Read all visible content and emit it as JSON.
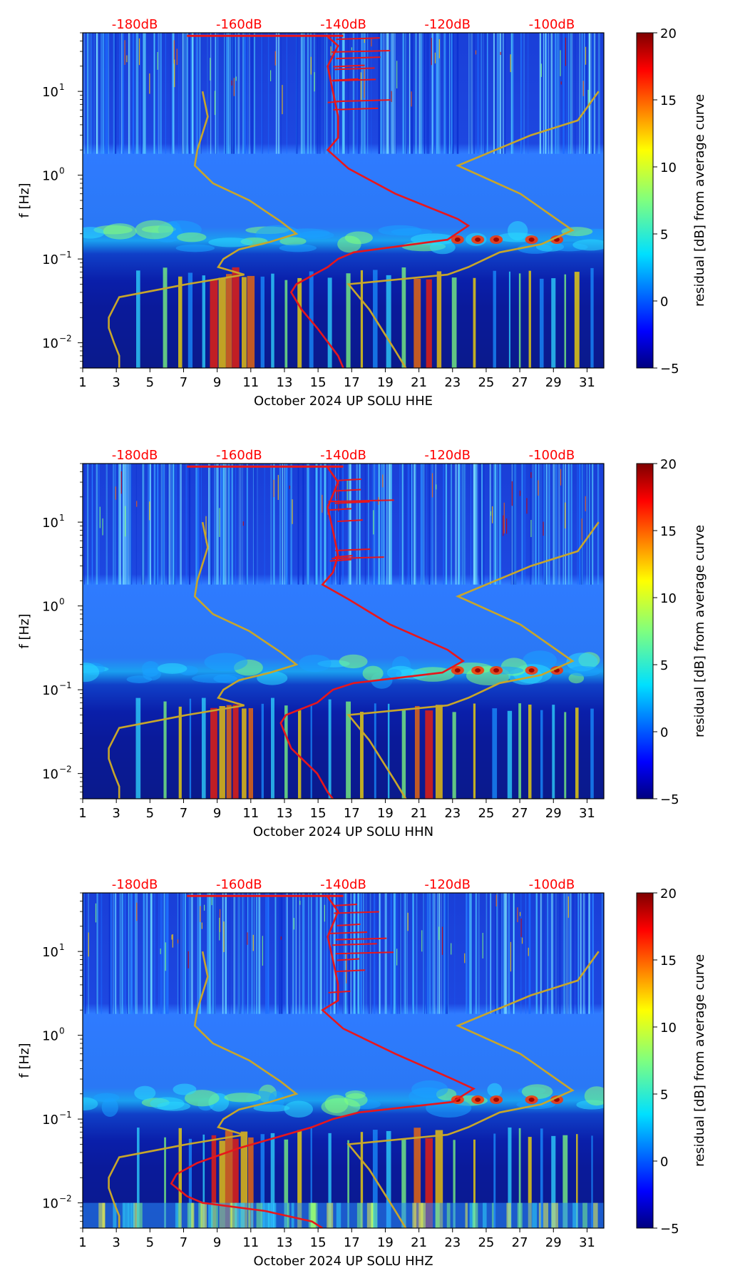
{
  "colors": {
    "psd_curve": "#e8161b",
    "noise_model": "#c8a62a",
    "db_axis_text": "#ff0000",
    "colormap": [
      "#00007f",
      "#0000ff",
      "#007fff",
      "#00ffff",
      "#7fff7f",
      "#ffff00",
      "#ff7f00",
      "#ff0000",
      "#7f0000"
    ]
  },
  "chart_data": [
    {
      "type": "heatmap",
      "component": "HHE",
      "xlabel": "October 2024 UP SOLU  HHE",
      "ylabel": "f [Hz]",
      "xlim": [
        1,
        32
      ],
      "ylim": [
        0.005,
        50
      ],
      "yscale": "log",
      "x_ticks": [
        "1",
        "3",
        "5",
        "7",
        "9",
        "11",
        "13",
        "15",
        "17",
        "19",
        "21",
        "23",
        "25",
        "27",
        "29",
        "31"
      ],
      "y_ticks": [
        {
          "base": "10",
          "exp": "−2",
          "value": 0.01
        },
        {
          "base": "10",
          "exp": "−1",
          "value": 0.1
        },
        {
          "base": "10",
          "exp": "0",
          "value": 1
        },
        {
          "base": "10",
          "exp": "1",
          "value": 10
        }
      ],
      "db_axis": {
        "labels": [
          "-180dB",
          "-160dB",
          "-140dB",
          "-120dB",
          "-100dB"
        ],
        "values": [
          -180,
          -160,
          -140,
          -120,
          -100
        ],
        "range": [
          -190,
          -90
        ]
      },
      "colorbar": {
        "label": "residual [dB] from average curve",
        "ticks": [
          "−5",
          "0",
          "5",
          "10",
          "15",
          "20"
        ],
        "range": [
          -5,
          20
        ]
      },
      "psd_curve_db": [
        [
          -143,
          45
        ],
        [
          -141,
          35
        ],
        [
          -143,
          20
        ],
        [
          -142,
          10
        ],
        [
          -141,
          5
        ],
        [
          -141,
          2.8
        ],
        [
          -143,
          2
        ],
        [
          -139,
          1.2
        ],
        [
          -130,
          0.6
        ],
        [
          -118,
          0.3
        ],
        [
          -116,
          0.25
        ],
        [
          -120,
          0.17
        ],
        [
          -138,
          0.12
        ],
        [
          -141,
          0.1
        ],
        [
          -143,
          0.08
        ],
        [
          -149,
          0.05
        ],
        [
          -150,
          0.04
        ],
        [
          -148,
          0.025
        ],
        [
          -145,
          0.015
        ],
        [
          -141,
          0.007
        ],
        [
          -140,
          0.005
        ]
      ],
      "noise_model_low_db": [
        [
          -167,
          10
        ],
        [
          -166,
          5
        ],
        [
          -168,
          2
        ],
        [
          -168.5,
          1.3
        ],
        [
          -165,
          0.8
        ],
        [
          -158,
          0.5
        ],
        [
          -152,
          0.28
        ],
        [
          -149,
          0.2
        ],
        [
          -154,
          0.16
        ],
        [
          -160,
          0.13
        ],
        [
          -163,
          0.1
        ],
        [
          -164,
          0.08
        ],
        [
          -159,
          0.065
        ],
        [
          -170,
          0.05
        ],
        [
          -183,
          0.035
        ],
        [
          -185,
          0.02
        ],
        [
          -185,
          0.015
        ],
        [
          -184,
          0.01
        ],
        [
          -183,
          0.007
        ],
        [
          -183,
          0.005
        ]
      ],
      "noise_model_high_db": [
        [
          -91,
          10
        ],
        [
          -95,
          4.5
        ],
        [
          -104,
          3
        ],
        [
          -118,
          1.3
        ],
        [
          -106,
          0.6
        ],
        [
          -96,
          0.22
        ],
        [
          -102,
          0.15
        ],
        [
          -110,
          0.12
        ],
        [
          -116,
          0.08
        ],
        [
          -120,
          0.065
        ],
        [
          -139,
          0.05
        ],
        [
          -135,
          0.025
        ],
        [
          -130,
          0.008
        ],
        [
          -128,
          0.005
        ]
      ]
    },
    {
      "type": "heatmap",
      "component": "HHN",
      "xlabel": "October 2024 UP SOLU  HHN",
      "ylabel": "f [Hz]",
      "xlim": [
        1,
        32
      ],
      "ylim": [
        0.005,
        50
      ],
      "yscale": "log",
      "x_ticks": [
        "1",
        "3",
        "5",
        "7",
        "9",
        "11",
        "13",
        "15",
        "17",
        "19",
        "21",
        "23",
        "25",
        "27",
        "29",
        "31"
      ],
      "y_ticks": [
        {
          "base": "10",
          "exp": "−2",
          "value": 0.01
        },
        {
          "base": "10",
          "exp": "−1",
          "value": 0.1
        },
        {
          "base": "10",
          "exp": "0",
          "value": 1
        },
        {
          "base": "10",
          "exp": "1",
          "value": 10
        }
      ],
      "db_axis": {
        "labels": [
          "-180dB",
          "-160dB",
          "-140dB",
          "-120dB",
          "-100dB"
        ],
        "values": [
          -180,
          -160,
          -140,
          -120,
          -100
        ],
        "range": [
          -190,
          -90
        ]
      },
      "colorbar": {
        "label": "residual [dB] from average curve",
        "ticks": [
          "−5",
          "0",
          "5",
          "10",
          "15",
          "20"
        ],
        "range": [
          -5,
          20
        ]
      },
      "psd_curve_db": [
        [
          -143,
          45
        ],
        [
          -141,
          30
        ],
        [
          -143,
          15
        ],
        [
          -142,
          8
        ],
        [
          -141,
          4
        ],
        [
          -142,
          2.5
        ],
        [
          -144,
          1.8
        ],
        [
          -139,
          1.2
        ],
        [
          -131,
          0.6
        ],
        [
          -120,
          0.3
        ],
        [
          -117,
          0.22
        ],
        [
          -121,
          0.16
        ],
        [
          -138,
          0.12
        ],
        [
          -142,
          0.1
        ],
        [
          -145,
          0.07
        ],
        [
          -151,
          0.05
        ],
        [
          -152,
          0.04
        ],
        [
          -150,
          0.02
        ],
        [
          -145,
          0.01
        ],
        [
          -143,
          0.006
        ],
        [
          -142,
          0.005
        ]
      ],
      "noise_model_low_db": [
        [
          -167,
          10
        ],
        [
          -166,
          5
        ],
        [
          -168,
          2
        ],
        [
          -168.5,
          1.3
        ],
        [
          -165,
          0.8
        ],
        [
          -158,
          0.5
        ],
        [
          -152,
          0.28
        ],
        [
          -149,
          0.2
        ],
        [
          -154,
          0.16
        ],
        [
          -160,
          0.13
        ],
        [
          -163,
          0.1
        ],
        [
          -164,
          0.08
        ],
        [
          -159,
          0.065
        ],
        [
          -170,
          0.05
        ],
        [
          -183,
          0.035
        ],
        [
          -185,
          0.02
        ],
        [
          -185,
          0.015
        ],
        [
          -184,
          0.01
        ],
        [
          -183,
          0.007
        ],
        [
          -183,
          0.005
        ]
      ],
      "noise_model_high_db": [
        [
          -91,
          10
        ],
        [
          -95,
          4.5
        ],
        [
          -104,
          3
        ],
        [
          -118,
          1.3
        ],
        [
          -106,
          0.6
        ],
        [
          -96,
          0.22
        ],
        [
          -102,
          0.15
        ],
        [
          -110,
          0.12
        ],
        [
          -116,
          0.08
        ],
        [
          -120,
          0.065
        ],
        [
          -139,
          0.05
        ],
        [
          -135,
          0.025
        ],
        [
          -130,
          0.008
        ],
        [
          -128,
          0.005
        ]
      ]
    },
    {
      "type": "heatmap",
      "component": "HHZ",
      "xlabel": "October 2024 UP SOLU  HHZ",
      "ylabel": "f [Hz]",
      "xlim": [
        1,
        32
      ],
      "ylim": [
        0.005,
        50
      ],
      "yscale": "log",
      "x_ticks": [
        "1",
        "3",
        "5",
        "7",
        "9",
        "11",
        "13",
        "15",
        "17",
        "19",
        "21",
        "23",
        "25",
        "27",
        "29",
        "31"
      ],
      "y_ticks": [
        {
          "base": "10",
          "exp": "−2",
          "value": 0.01
        },
        {
          "base": "10",
          "exp": "−1",
          "value": 0.1
        },
        {
          "base": "10",
          "exp": "0",
          "value": 1
        },
        {
          "base": "10",
          "exp": "1",
          "value": 10
        }
      ],
      "db_axis": {
        "labels": [
          "-180dB",
          "-160dB",
          "-140dB",
          "-120dB",
          "-100dB"
        ],
        "values": [
          -180,
          -160,
          -140,
          -120,
          -100
        ],
        "range": [
          -190,
          -90
        ]
      },
      "colorbar": {
        "label": "residual [dB] from average curve",
        "ticks": [
          "−5",
          "0",
          "5",
          "10",
          "15",
          "20"
        ],
        "range": [
          -5,
          20
        ]
      },
      "psd_curve_db": [
        [
          -143,
          45
        ],
        [
          -141,
          30
        ],
        [
          -143,
          15
        ],
        [
          -142,
          8
        ],
        [
          -141,
          4
        ],
        [
          -141,
          2.6
        ],
        [
          -144,
          2
        ],
        [
          -140,
          1.2
        ],
        [
          -130,
          0.6
        ],
        [
          -119,
          0.3
        ],
        [
          -115,
          0.23
        ],
        [
          -119,
          0.16
        ],
        [
          -137,
          0.12
        ],
        [
          -142,
          0.1
        ],
        [
          -146,
          0.08
        ],
        [
          -153,
          0.06
        ],
        [
          -160,
          0.045
        ],
        [
          -168,
          0.03
        ],
        [
          -172,
          0.022
        ],
        [
          -173,
          0.017
        ],
        [
          -170,
          0.012
        ],
        [
          -167,
          0.01
        ],
        [
          -155,
          0.008
        ],
        [
          -146,
          0.006
        ],
        [
          -144,
          0.005
        ]
      ],
      "noise_model_low_db": [
        [
          -167,
          10
        ],
        [
          -166,
          5
        ],
        [
          -168,
          2
        ],
        [
          -168.5,
          1.3
        ],
        [
          -165,
          0.8
        ],
        [
          -158,
          0.5
        ],
        [
          -152,
          0.28
        ],
        [
          -149,
          0.2
        ],
        [
          -154,
          0.16
        ],
        [
          -160,
          0.13
        ],
        [
          -163,
          0.1
        ],
        [
          -164,
          0.08
        ],
        [
          -159,
          0.065
        ],
        [
          -170,
          0.05
        ],
        [
          -183,
          0.035
        ],
        [
          -185,
          0.02
        ],
        [
          -185,
          0.015
        ],
        [
          -184,
          0.01
        ],
        [
          -183,
          0.007
        ],
        [
          -183,
          0.005
        ]
      ],
      "noise_model_high_db": [
        [
          -91,
          10
        ],
        [
          -95,
          4.5
        ],
        [
          -104,
          3
        ],
        [
          -118,
          1.3
        ],
        [
          -106,
          0.6
        ],
        [
          -96,
          0.22
        ],
        [
          -102,
          0.15
        ],
        [
          -110,
          0.12
        ],
        [
          -116,
          0.08
        ],
        [
          -120,
          0.065
        ],
        [
          -139,
          0.05
        ],
        [
          -135,
          0.025
        ],
        [
          -130,
          0.008
        ],
        [
          -128,
          0.005
        ]
      ]
    }
  ]
}
